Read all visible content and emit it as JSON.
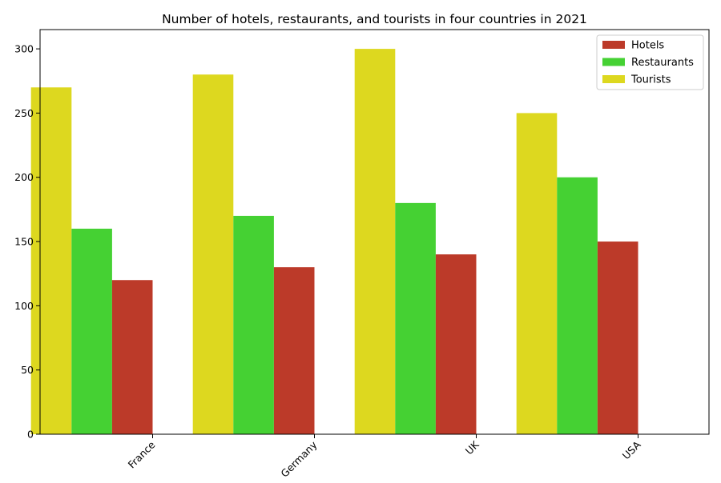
{
  "chart_data": {
    "type": "bar",
    "title": "Number of hotels, restaurants, and tourists in four countries in 2021",
    "xlabel": "",
    "ylabel": "",
    "categories": [
      "France",
      "Germany",
      "UK",
      "USA"
    ],
    "series": [
      {
        "name": "Tourists",
        "values": [
          270,
          280,
          300,
          250
        ],
        "color": "#ddd81f"
      },
      {
        "name": "Restaurants",
        "values": [
          160,
          170,
          180,
          200
        ],
        "color": "#45d133"
      },
      {
        "name": "Hotels",
        "values": [
          120,
          130,
          140,
          150
        ],
        "color": "#bc3a29"
      }
    ],
    "legend_order": [
      "Hotels",
      "Restaurants",
      "Tourists"
    ],
    "legend_position": "top-right",
    "ylim": [
      0,
      315
    ],
    "yticks": [
      0,
      50,
      100,
      150,
      200,
      250,
      300
    ],
    "grid": false,
    "x_tick_rotation_deg": 45
  }
}
